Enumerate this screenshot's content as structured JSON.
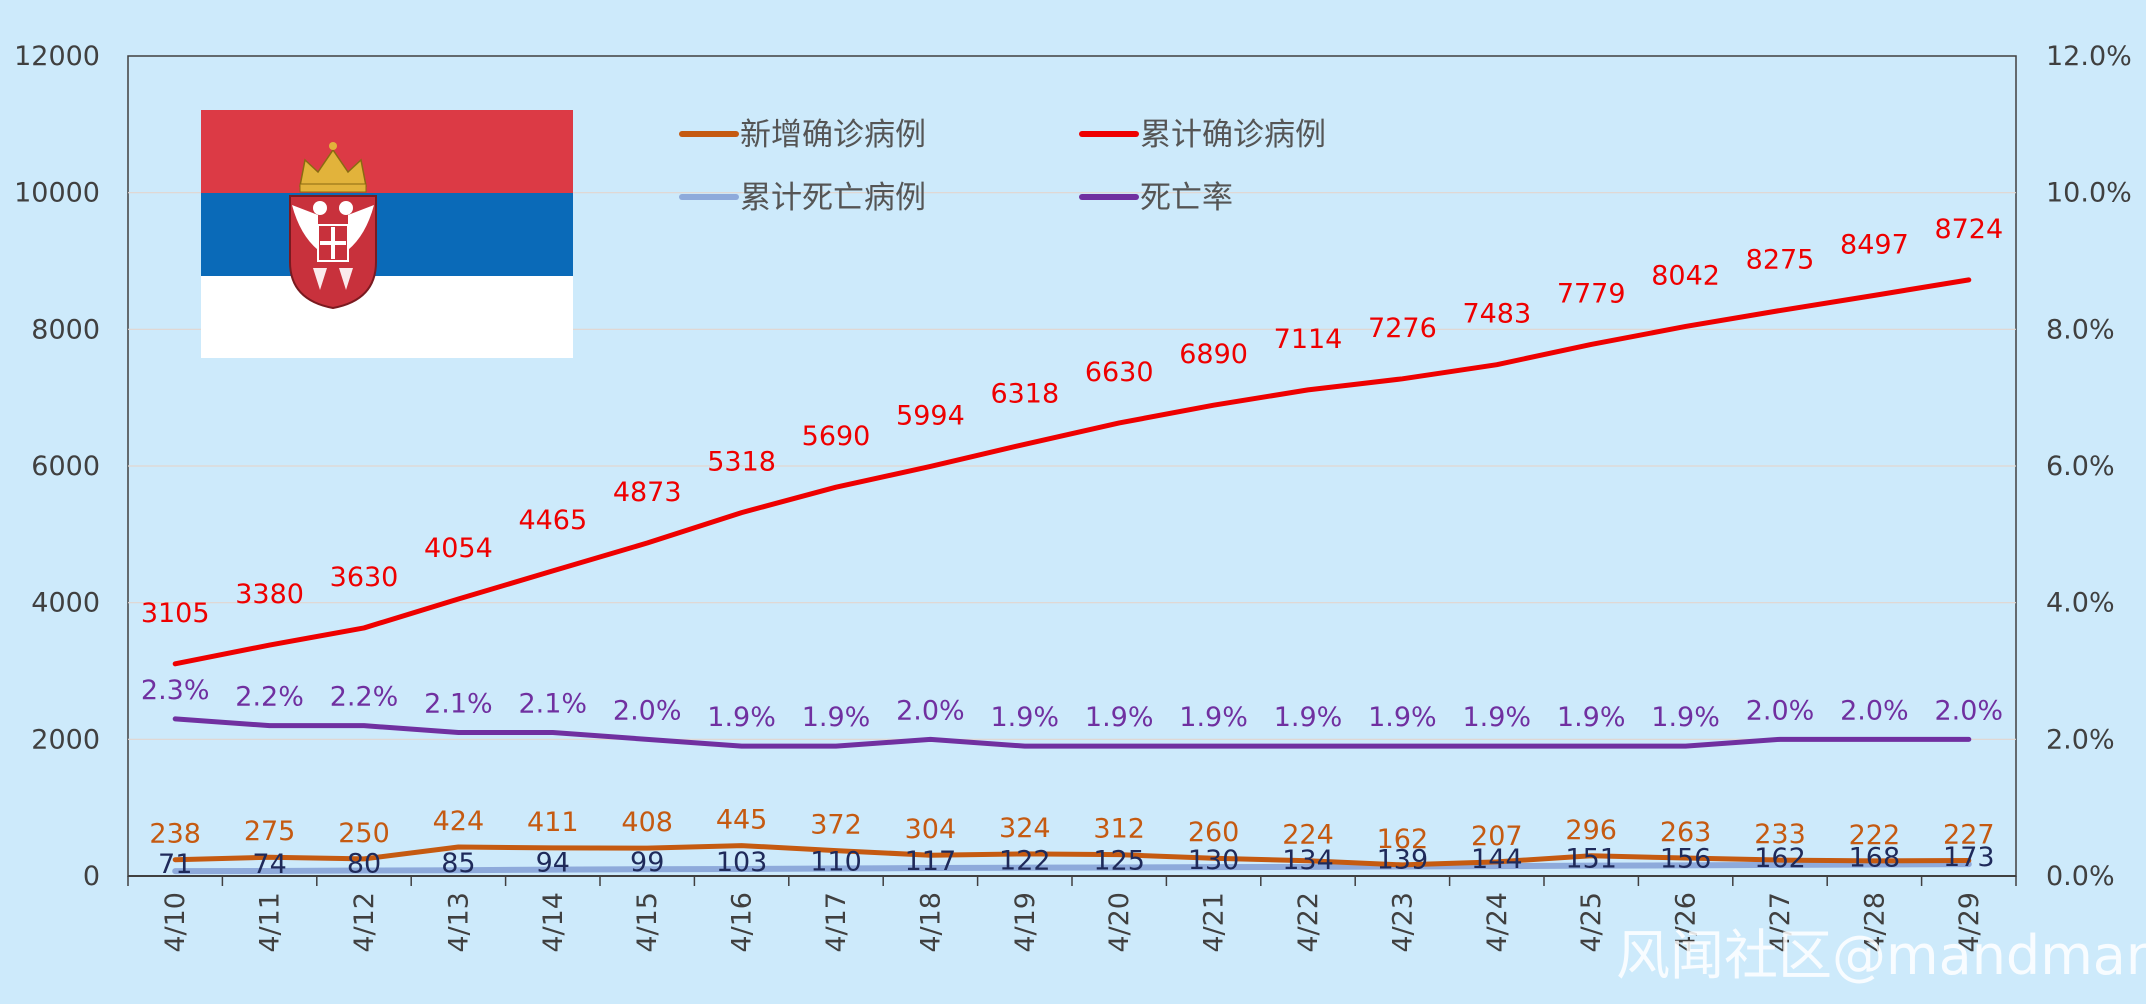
{
  "chart_data": {
    "type": "line",
    "categories": [
      "4/10",
      "4/11",
      "4/12",
      "4/13",
      "4/14",
      "4/15",
      "4/16",
      "4/17",
      "4/18",
      "4/19",
      "4/20",
      "4/21",
      "4/22",
      "4/23",
      "4/24",
      "4/25",
      "4/26",
      "4/27",
      "4/28",
      "4/29"
    ],
    "series": [
      {
        "name": "新增确诊病例",
        "axis": "left",
        "color": "#c55a11",
        "values": [
          238,
          275,
          250,
          424,
          411,
          408,
          445,
          372,
          304,
          324,
          312,
          260,
          224,
          162,
          207,
          296,
          263,
          233,
          222,
          227
        ],
        "labels": [
          "238",
          "275",
          "250",
          "424",
          "411",
          "408",
          "445",
          "372",
          "304",
          "324",
          "312",
          "260",
          "224",
          "162",
          "207",
          "296",
          "263",
          "233",
          "222",
          "227"
        ]
      },
      {
        "name": "累计确诊病例",
        "axis": "left",
        "color": "#ee0000",
        "values": [
          3105,
          3380,
          3630,
          4054,
          4465,
          4873,
          5318,
          5690,
          5994,
          6318,
          6630,
          6890,
          7114,
          7276,
          7483,
          7779,
          8042,
          8275,
          8497,
          8724
        ],
        "labels": [
          "3105",
          "3380",
          "3630",
          "4054",
          "4465",
          "4873",
          "5318",
          "5690",
          "5994",
          "6318",
          "6630",
          "6890",
          "7114",
          "7276",
          "7483",
          "7779",
          "8042",
          "8275",
          "8497",
          "8724"
        ]
      },
      {
        "name": "累计死亡病例",
        "axis": "left",
        "color": "#8eaadb",
        "values": [
          71,
          74,
          80,
          85,
          94,
          99,
          103,
          110,
          117,
          122,
          125,
          130,
          134,
          139,
          144,
          151,
          156,
          162,
          168,
          173
        ],
        "labels": [
          "71",
          "74",
          "80",
          "85",
          "94",
          "99",
          "103",
          "110",
          "117",
          "122",
          "125",
          "130",
          "134",
          "139",
          "144",
          "151",
          "156",
          "162",
          "168",
          "173"
        ]
      },
      {
        "name": "死亡率",
        "axis": "right",
        "color": "#7030a0",
        "values": [
          2.3,
          2.2,
          2.2,
          2.1,
          2.1,
          2.0,
          1.9,
          1.9,
          2.0,
          1.9,
          1.9,
          1.9,
          1.9,
          1.9,
          1.9,
          1.9,
          1.9,
          2.0,
          2.0,
          2.0
        ],
        "labels": [
          "2.3%",
          "2.2%",
          "2.2%",
          "2.1%",
          "2.1%",
          "2.0%",
          "1.9%",
          "1.9%",
          "2.0%",
          "1.9%",
          "1.9%",
          "1.9%",
          "1.9%",
          "1.9%",
          "1.9%",
          "1.9%",
          "1.9%",
          "2.0%",
          "2.0%",
          "2.0%"
        ]
      }
    ],
    "y_left": {
      "min": 0,
      "max": 12000,
      "ticks": [
        "0",
        "2000",
        "4000",
        "6000",
        "8000",
        "10000",
        "12000"
      ]
    },
    "y_right": {
      "min": 0,
      "max": 12,
      "ticks": [
        "0.0%",
        "2.0%",
        "4.0%",
        "6.0%",
        "8.0%",
        "10.0%",
        "12.0%"
      ]
    },
    "grid": true,
    "legend_position": "top-center"
  },
  "flag": {
    "colors": [
      "#dc3a45",
      "#0a6ab8",
      "#ffffff"
    ]
  },
  "watermark": "风闻社区@mandman"
}
